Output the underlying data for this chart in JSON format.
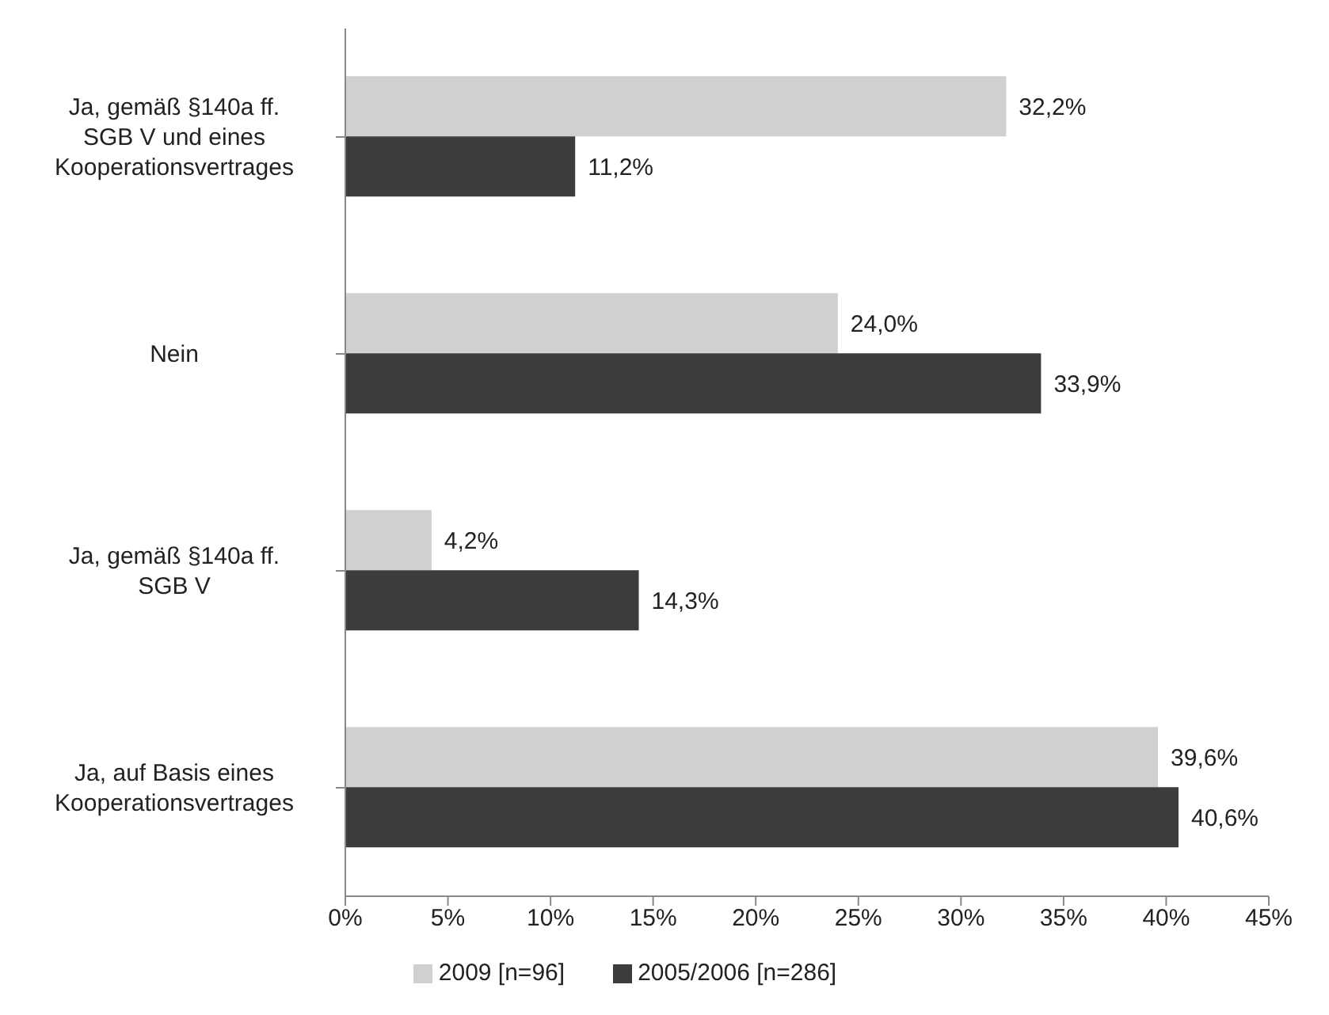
{
  "chart_data": {
    "type": "bar",
    "orientation": "horizontal",
    "categories": [
      "Ja, gemäß §140a ff. SGB V und eines Kooperationsvertrages",
      "Nein",
      "Ja, gemäß §140a ff. SGB V",
      "Ja, auf Basis eines Kooperationsvertrages"
    ],
    "series": [
      {
        "name": "2009 [n=96]",
        "color": "#d0d0d0",
        "values": [
          32.2,
          24.0,
          4.2,
          39.6
        ],
        "value_labels": [
          "32,2%",
          "24,0%",
          "4,2%",
          "39,6%"
        ]
      },
      {
        "name": "2005/2006 [n=286]",
        "color": "#3c3c3c",
        "values": [
          11.2,
          33.9,
          14.3,
          40.6
        ],
        "value_labels": [
          "11,2%",
          "33,9%",
          "14,3%",
          "40,6%"
        ]
      }
    ],
    "xlim": [
      0,
      45
    ],
    "xticks": [
      {
        "value": 0,
        "label": "0%"
      },
      {
        "value": 5,
        "label": "5%"
      },
      {
        "value": 10,
        "label": "10%"
      },
      {
        "value": 15,
        "label": "15%"
      },
      {
        "value": 20,
        "label": "20%"
      },
      {
        "value": 25,
        "label": "25%"
      },
      {
        "value": 30,
        "label": "30%"
      },
      {
        "value": 35,
        "label": "35%"
      },
      {
        "value": 40,
        "label": "40%"
      },
      {
        "value": 45,
        "label": "45%"
      }
    ],
    "grid": false,
    "legend": "bottom"
  }
}
